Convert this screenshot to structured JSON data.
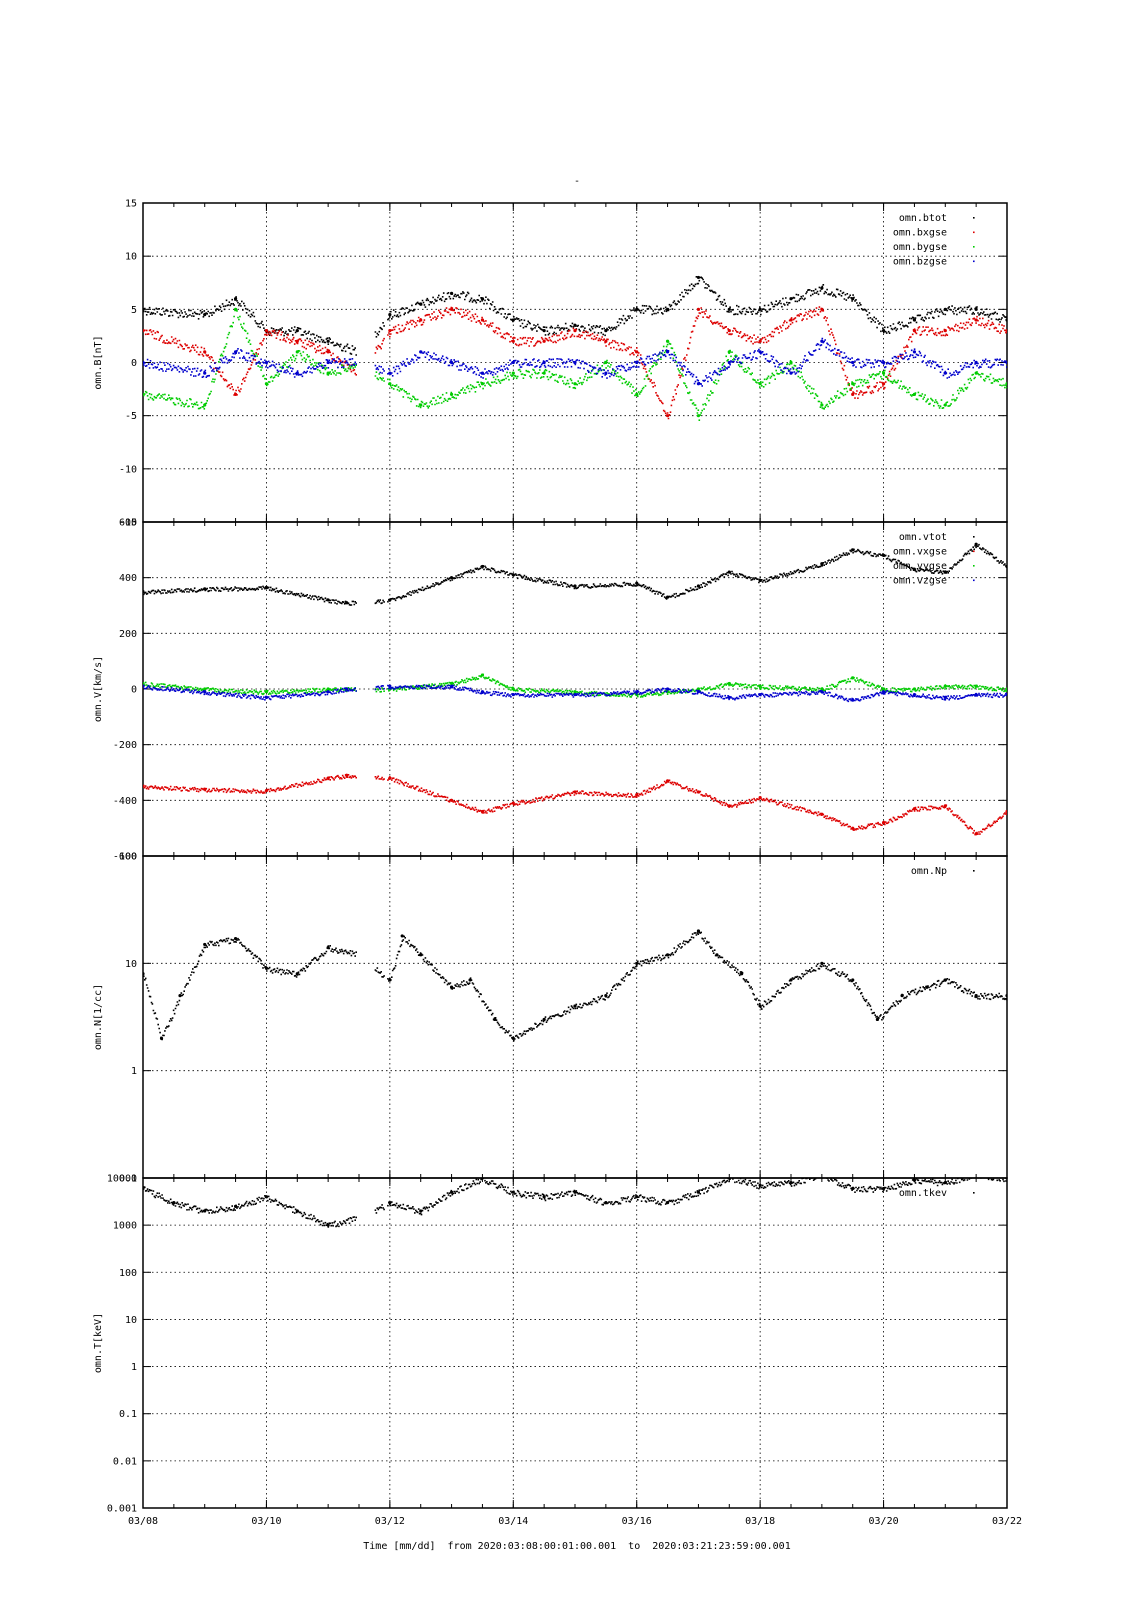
{
  "page": {
    "title_mark": "-"
  },
  "time_axis": {
    "tick_labels": [
      "03/08",
      "03/10",
      "03/12",
      "03/14",
      "03/16",
      "03/18",
      "03/20",
      "03/22"
    ],
    "footer_label": "Time [mm/dd]  from 2020:03:08:00:01:00.001  to  2020:03:21:23:59:00.001"
  },
  "chart_data": [
    {
      "type": "scatter",
      "ylabel": "omn.B[nT]",
      "ylim": [
        -15,
        15
      ],
      "y_ticks": [
        -15,
        -10,
        -5,
        0,
        5,
        10,
        15
      ],
      "y_tick_labels": [
        "-15",
        "-10",
        "-5",
        "0",
        "5",
        "10",
        "15"
      ],
      "scale": "linear",
      "grid": true,
      "legend_position": "top-right",
      "series": [
        {
          "name": "omn.btot",
          "color": "#000000",
          "x": [
            "03/08",
            "03/09",
            "03/09.5",
            "03/10",
            "03/10.5",
            "03/11",
            "03/11.5",
            "03/12",
            "03/12.5",
            "03/13",
            "03/13.5",
            "03/14",
            "03/14.5",
            "03/15",
            "03/15.5",
            "03/16",
            "03/16.5",
            "03/17",
            "03/17.5",
            "03/18",
            "03/18.5",
            "03/19",
            "03/19.5",
            "03/20",
            "03/20.5",
            "03/21",
            "03/21.5",
            "03/22"
          ],
          "y": [
            5,
            4.5,
            6,
            3,
            3,
            2,
            1,
            4.5,
            5.5,
            6.5,
            6,
            4,
            3,
            3.5,
            3,
            5,
            5,
            8,
            5,
            5,
            6,
            7,
            6,
            3,
            4,
            5,
            5,
            4
          ]
        },
        {
          "name": "omn.bxgse",
          "color": "#dd0000",
          "x": [
            "03/08",
            "03/09",
            "03/09.5",
            "03/10",
            "03/10.5",
            "03/11",
            "03/11.5",
            "03/12",
            "03/12.5",
            "03/13",
            "03/13.5",
            "03/14",
            "03/14.5",
            "03/15",
            "03/15.5",
            "03/16",
            "03/16.5",
            "03/17",
            "03/17.5",
            "03/18",
            "03/18.5",
            "03/19",
            "03/19.5",
            "03/20",
            "03/20.5",
            "03/21",
            "03/21.5",
            "03/22"
          ],
          "y": [
            3,
            1,
            -3,
            3,
            2,
            1,
            -1,
            3,
            4,
            5,
            4,
            2,
            2,
            3,
            2,
            1,
            -5,
            5,
            3,
            2,
            4,
            5,
            -3,
            -2,
            3,
            3,
            4,
            3
          ]
        },
        {
          "name": "omn.bygse",
          "color": "#00cc00",
          "x": [
            "03/08",
            "03/09",
            "03/09.5",
            "03/10",
            "03/10.5",
            "03/11",
            "03/11.5",
            "03/12",
            "03/12.5",
            "03/13",
            "03/13.5",
            "03/14",
            "03/14.5",
            "03/15",
            "03/15.5",
            "03/16",
            "03/16.5",
            "03/17",
            "03/17.5",
            "03/18",
            "03/18.5",
            "03/19",
            "03/19.5",
            "03/20",
            "03/20.5",
            "03/21",
            "03/21.5",
            "03/22"
          ],
          "y": [
            -3,
            -4,
            5,
            -2,
            1,
            -1,
            0,
            -2,
            -4,
            -3,
            -2,
            -1,
            -1,
            -2,
            0,
            -3,
            2,
            -5,
            1,
            -2,
            0,
            -4,
            -2,
            -1,
            -3,
            -4,
            -1,
            -2
          ]
        },
        {
          "name": "omn.bzgse",
          "color": "#0000cc",
          "x": [
            "03/08",
            "03/09",
            "03/09.5",
            "03/10",
            "03/10.5",
            "03/11",
            "03/11.5",
            "03/12",
            "03/12.5",
            "03/13",
            "03/13.5",
            "03/14",
            "03/14.5",
            "03/15",
            "03/15.5",
            "03/16",
            "03/16.5",
            "03/17",
            "03/17.5",
            "03/18",
            "03/18.5",
            "03/19",
            "03/19.5",
            "03/20",
            "03/20.5",
            "03/21",
            "03/21.5",
            "03/22"
          ],
          "y": [
            0,
            -1,
            1,
            0,
            -1,
            0,
            0,
            -1,
            1,
            0,
            -1,
            0,
            0,
            0,
            -1,
            0,
            1,
            -2,
            0,
            1,
            -1,
            2,
            0,
            0,
            1,
            -1,
            0,
            0
          ]
        }
      ]
    },
    {
      "type": "scatter",
      "ylabel": "omn.V[km/s]",
      "ylim": [
        -600,
        600
      ],
      "y_ticks": [
        -600,
        -400,
        -200,
        0,
        200,
        400,
        600
      ],
      "y_tick_labels": [
        "-600",
        "-400",
        "-200",
        "0",
        "200",
        "400",
        "600"
      ],
      "scale": "linear",
      "grid": true,
      "legend_position": "top-right",
      "series": [
        {
          "name": "omn.vtot",
          "color": "#000000",
          "x": [
            "03/08",
            "03/09",
            "03/10",
            "03/11",
            "03/11.3",
            "03/12",
            "03/13",
            "03/13.5",
            "03/14",
            "03/15",
            "03/16",
            "03/16.5",
            "03/17",
            "03/17.5",
            "03/18",
            "03/19",
            "03/19.5",
            "03/20",
            "03/20.5",
            "03/21",
            "03/21.5",
            "03/22"
          ],
          "y": [
            350,
            360,
            365,
            320,
            310,
            320,
            400,
            440,
            410,
            370,
            380,
            330,
            370,
            420,
            390,
            450,
            500,
            480,
            430,
            420,
            520,
            440
          ]
        },
        {
          "name": "omn.vxgse",
          "color": "#dd0000",
          "x": [
            "03/08",
            "03/09",
            "03/10",
            "03/11",
            "03/11.3",
            "03/12",
            "03/13",
            "03/13.5",
            "03/14",
            "03/15",
            "03/16",
            "03/16.5",
            "03/17",
            "03/17.5",
            "03/18",
            "03/19",
            "03/19.5",
            "03/20",
            "03/20.5",
            "03/21",
            "03/21.5",
            "03/22"
          ],
          "y": [
            -350,
            -360,
            -365,
            -320,
            -310,
            -320,
            -400,
            -440,
            -410,
            -370,
            -380,
            -330,
            -370,
            -420,
            -390,
            -450,
            -500,
            -480,
            -430,
            -420,
            -520,
            -440
          ]
        },
        {
          "name": "omn.vygse",
          "color": "#00cc00",
          "x": [
            "03/08",
            "03/09",
            "03/10",
            "03/11",
            "03/11.3",
            "03/12",
            "03/13",
            "03/13.5",
            "03/14",
            "03/15",
            "03/16",
            "03/16.5",
            "03/17",
            "03/17.5",
            "03/18",
            "03/19",
            "03/19.5",
            "03/20",
            "03/20.5",
            "03/21",
            "03/21.5",
            "03/22"
          ],
          "y": [
            20,
            0,
            -10,
            0,
            0,
            0,
            20,
            50,
            0,
            -10,
            -20,
            -10,
            0,
            20,
            10,
            0,
            40,
            0,
            0,
            10,
            10,
            0
          ]
        },
        {
          "name": "omn.vzgse",
          "color": "#0000cc",
          "x": [
            "03/08",
            "03/09",
            "03/10",
            "03/11",
            "03/11.3",
            "03/12",
            "03/13",
            "03/13.5",
            "03/14",
            "03/15",
            "03/16",
            "03/16.5",
            "03/17",
            "03/17.5",
            "03/18",
            "03/19",
            "03/19.5",
            "03/20",
            "03/20.5",
            "03/21",
            "03/21.5",
            "03/22"
          ],
          "y": [
            10,
            -10,
            -30,
            -10,
            0,
            10,
            10,
            -10,
            -20,
            -20,
            -10,
            0,
            -10,
            -30,
            -20,
            -10,
            -40,
            -10,
            -20,
            -30,
            -20,
            -20
          ]
        }
      ]
    },
    {
      "type": "scatter",
      "ylabel": "omn.N[1/cc]",
      "ylim": [
        0.1,
        100
      ],
      "y_ticks": [
        0.1,
        1,
        10,
        100
      ],
      "y_tick_labels": [
        "0.1",
        "1",
        "10",
        "100"
      ],
      "scale": "log",
      "grid": true,
      "legend_position": "top-right",
      "series": [
        {
          "name": "omn.Np",
          "color": "#000000",
          "x": [
            "03/08",
            "03/08.3",
            "03/08.6",
            "03/09",
            "03/09.5",
            "03/10",
            "03/10.5",
            "03/11",
            "03/11.5",
            "03/12",
            "03/12.2",
            "03/12.5",
            "03/13",
            "03/13.3",
            "03/13.7",
            "03/14",
            "03/14.5",
            "03/15",
            "03/15.5",
            "03/16",
            "03/16.5",
            "03/17",
            "03/17.3",
            "03/17.7",
            "03/18",
            "03/18.5",
            "03/19",
            "03/19.5",
            "03/19.9",
            "03/20.3",
            "03/20.7",
            "03/21",
            "03/21.5",
            "03/22"
          ],
          "y": [
            8,
            2,
            5,
            15,
            17,
            9,
            8,
            14,
            12,
            7,
            18,
            12,
            6,
            7,
            3,
            2,
            3,
            4,
            5,
            10,
            12,
            20,
            12,
            8,
            4,
            7,
            10,
            7,
            3,
            5,
            6,
            7,
            5,
            5
          ]
        }
      ]
    },
    {
      "type": "scatter",
      "ylabel": "omn.T[keV]",
      "ylim": [
        0.001,
        10000
      ],
      "y_ticks": [
        0.001,
        0.01,
        0.1,
        1,
        10,
        100,
        1000,
        10000
      ],
      "y_tick_labels": [
        "0.001",
        "0.01",
        "0.1",
        "1",
        "10",
        "100",
        "1000",
        "10000"
      ],
      "scale": "log",
      "grid": true,
      "legend_position": "top-right",
      "series": [
        {
          "name": "omn.tkev",
          "color": "#000000",
          "x": [
            "03/08",
            "03/08.5",
            "03/09",
            "03/09.5",
            "03/10",
            "03/10.5",
            "03/11",
            "03/11.5",
            "03/12",
            "03/12.5",
            "03/13",
            "03/13.5",
            "03/14",
            "03/14.5",
            "03/15",
            "03/15.5",
            "03/16",
            "03/16.5",
            "03/17",
            "03/17.5",
            "03/18",
            "03/18.5",
            "03/19",
            "03/19.5",
            "03/20",
            "03/20.5",
            "03/21",
            "03/21.5",
            "03/22"
          ],
          "y": [
            6000,
            3000,
            2000,
            2500,
            4000,
            2000,
            1000,
            1500,
            3000,
            2000,
            5000,
            10000,
            5000,
            4000,
            5000,
            3000,
            4000,
            3000,
            5000,
            10000,
            7000,
            8000,
            12000,
            6000,
            6000,
            9000,
            8000,
            12000,
            10000
          ]
        }
      ]
    }
  ]
}
